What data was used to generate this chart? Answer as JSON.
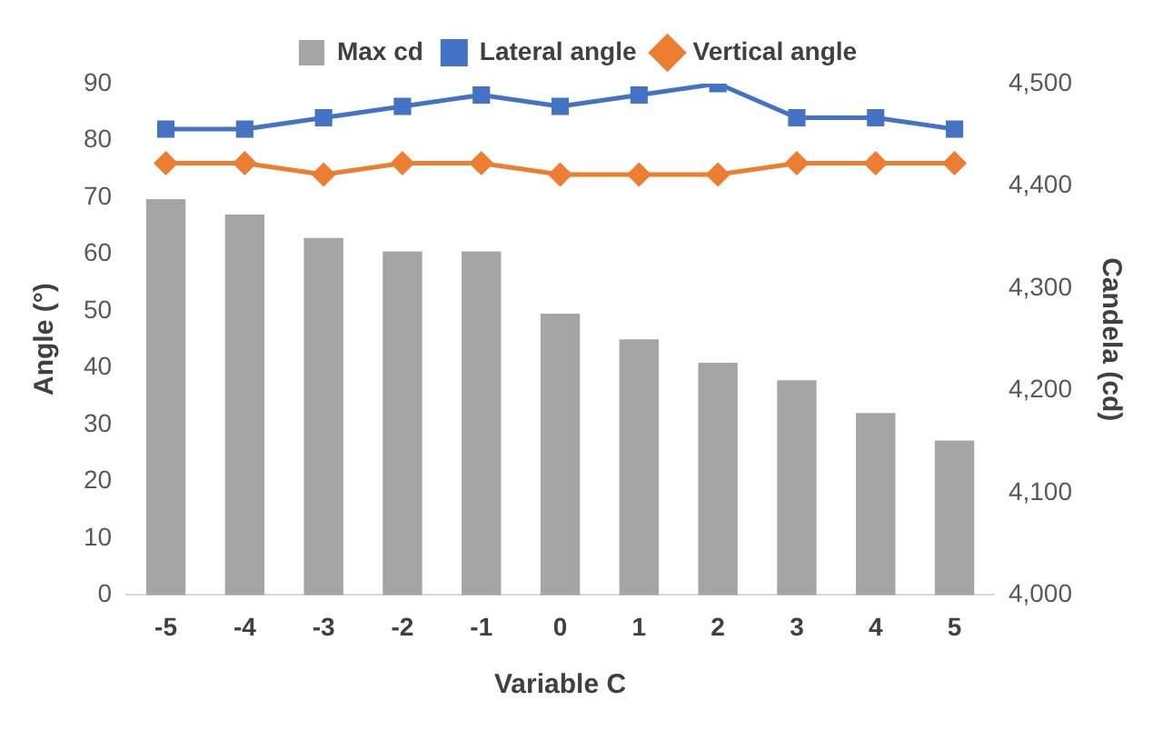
{
  "chart_data": {
    "type": "bar",
    "xlabel": "Variable C",
    "ylabel": "Angle (°)",
    "y2label": "Candela (cd)",
    "categories": [
      "-5",
      "-4",
      "-3",
      "-2",
      "-1",
      "0",
      "1",
      "2",
      "3",
      "4",
      "5"
    ],
    "series": [
      {
        "name": "Max cd",
        "axis": "y2",
        "color": "#a5a5a5",
        "values": [
          4387,
          4372,
          4349,
          4336,
          4336,
          4275,
          4250,
          4227,
          4210,
          4178,
          4151
        ]
      },
      {
        "name": "Lateral angle",
        "type": "line",
        "marker": "square",
        "color": "#4472c4",
        "values": [
          82,
          82,
          84,
          86,
          88,
          86,
          88,
          90,
          84,
          84,
          82
        ]
      },
      {
        "name": "Vertical angle",
        "type": "line",
        "marker": "diamond",
        "color": "#ed7d31",
        "values": [
          76,
          76,
          74,
          76,
          76,
          74,
          74,
          74,
          76,
          76,
          76
        ]
      }
    ],
    "ylim": [
      0,
      90
    ],
    "yticks": [
      0,
      10,
      20,
      30,
      40,
      50,
      60,
      70,
      80,
      90
    ],
    "y2lim": [
      4000,
      4500
    ],
    "y2ticks": [
      {
        "value": 4000,
        "label": "4,000"
      },
      {
        "value": 4100,
        "label": "4,100"
      },
      {
        "value": 4200,
        "label": "4,200"
      },
      {
        "value": 4300,
        "label": "4,300"
      },
      {
        "value": 4400,
        "label": "4,400"
      },
      {
        "value": 4500,
        "label": "4,500"
      }
    ],
    "grid": false,
    "legend": "top"
  }
}
